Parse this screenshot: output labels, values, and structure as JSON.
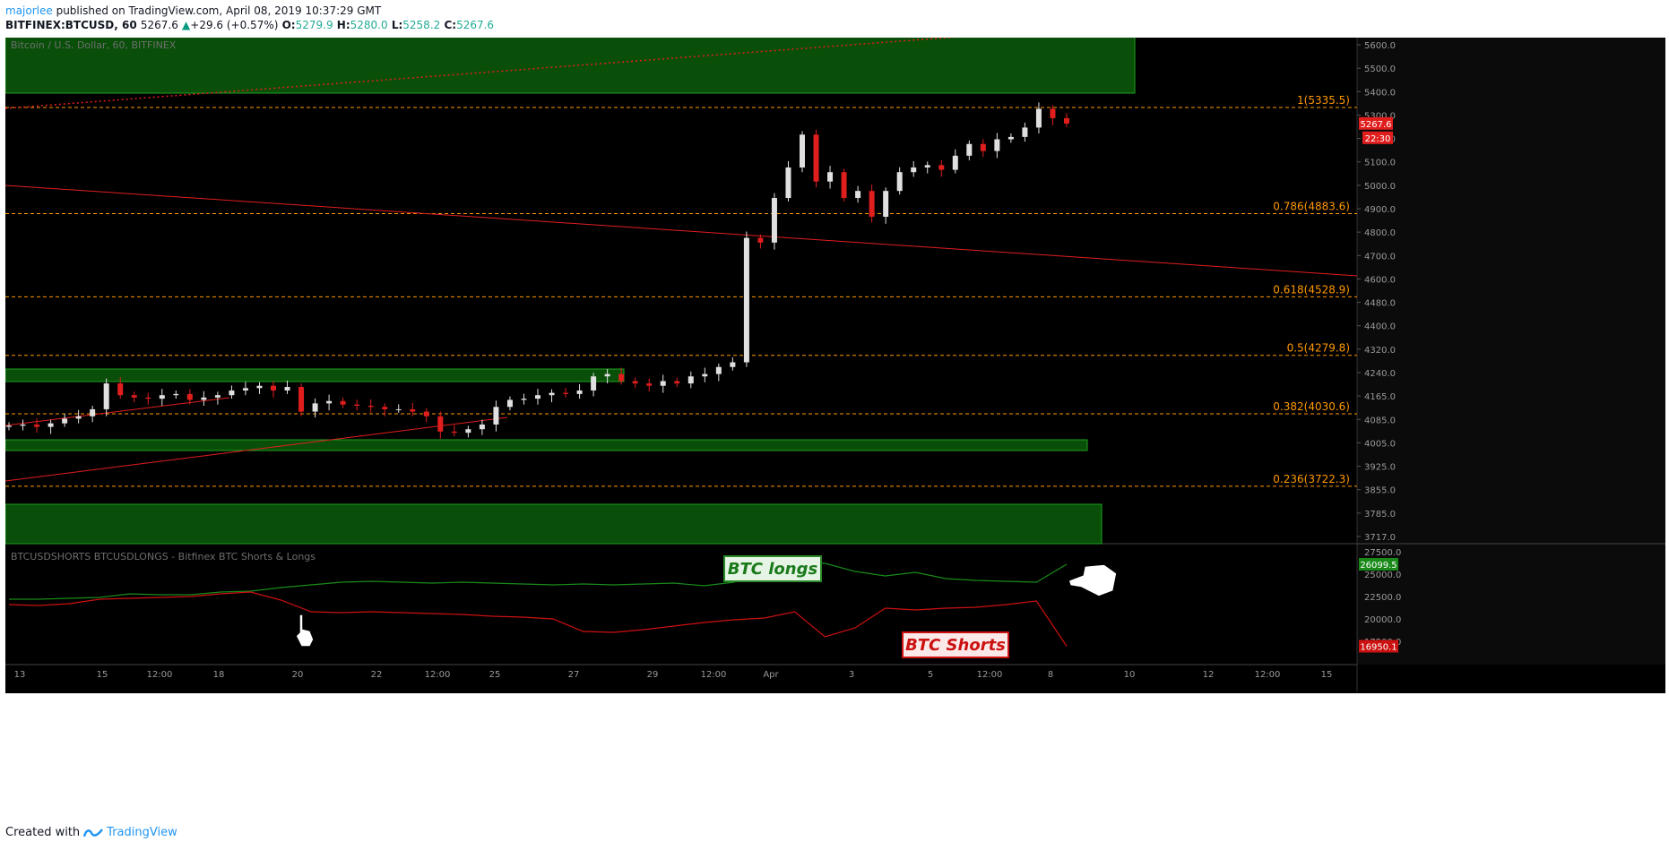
{
  "header": {
    "user": "majorlee",
    "published": " published on TradingView.com, April 08, 2019 10:37:29 GMT",
    "symbol": "BITFINEX:BTCUSD, 60",
    "price": "5267.6",
    "change": "+29.6 (+0.57%)",
    "o_label": "O:",
    "o": "5279.9",
    "h_label": "H:",
    "h": "5280.0",
    "l_label": "L:",
    "l": "5258.2",
    "c_label": "C:",
    "c": "5267.6"
  },
  "main_pane": {
    "title": "Bitcoin / U.S. Dollar, 60, BITFINEX",
    "price_badge": "5267.6",
    "time_badge": "22:30",
    "price_axis": [
      "5600.0",
      "5500.0",
      "5400.0",
      "5300.0",
      "5200.0",
      "5100.0",
      "5000.0",
      "4900.0",
      "4800.0",
      "4700.0",
      "4600.0",
      "4480.0",
      "4400.0",
      "4320.0",
      "4240.0",
      "4165.0",
      "4085.0",
      "4005.0",
      "3925.0",
      "3855.0",
      "3785.0",
      "3717.0"
    ]
  },
  "fib_levels": [
    {
      "label": "1(5335.5)",
      "price": 5335.5
    },
    {
      "label": "0.786(4883.6)",
      "price": 4883.6
    },
    {
      "label": "0.618(4528.9)",
      "price": 4528.9
    },
    {
      "label": "0.5(4279.8)",
      "price": 4279.8
    },
    {
      "label": "0.382(4030.6)",
      "price": 4030.6
    },
    {
      "label": "0.236(3722.3)",
      "price": 3722.3
    }
  ],
  "indicator_pane": {
    "title": "BTCUSDSHORTS BTCUSDLONGS - Bitfinex BTC Shorts & Longs",
    "axis": [
      "27500.0",
      "25000.0",
      "22500.0",
      "20000.0",
      "17500.0"
    ],
    "longs_badge": "26099.5",
    "shorts_badge": "16950.1",
    "longs_annotation": "BTC longs",
    "shorts_annotation": "BTC Shorts"
  },
  "time_axis": [
    "13",
    "15",
    "12:00",
    "18",
    "20",
    "22",
    "12:00",
    "25",
    "27",
    "29",
    "12:00",
    "Apr",
    "3",
    "5",
    "12:00",
    "8",
    "10",
    "12",
    "12:00",
    "15"
  ],
  "colors": {
    "fib": "#ff9800",
    "zone": "#0a5d0a",
    "trend": "#e01e1e",
    "up": "#e0e0e0",
    "down": "#e01e1e",
    "longs": "#1a8a1a",
    "shorts": "#cc1111"
  },
  "footer": {
    "prefix": "Created with",
    "brand": "TradingView"
  },
  "chart_data": {
    "type": "candlestick",
    "title": "Bitcoin / U.S. Dollar, 60, BITFINEX",
    "ylim": [
      3700,
      5650
    ],
    "series": [
      {
        "name": "BTCUSD close (approx.)",
        "values": [
          3980,
          3985,
          3975,
          3990,
          4010,
          4020,
          4050,
          4160,
          4110,
          4100,
          4095,
          4110,
          4115,
          4090,
          4100,
          4110,
          4130,
          4140,
          4150,
          4130,
          4145,
          4040,
          4075,
          4085,
          4070,
          4065,
          4060,
          4050,
          4050,
          4040,
          4020,
          3955,
          3950,
          3965,
          3985,
          4060,
          4090,
          4095,
          4110,
          4120,
          4115,
          4130,
          4190,
          4200,
          4170,
          4160,
          4150,
          4170,
          4160,
          4190,
          4200,
          4230,
          4250,
          4780,
          4760,
          4950,
          5080,
          5220,
          5020,
          5060,
          4950,
          4980,
          4870,
          4980,
          5060,
          5080,
          5090,
          5070,
          5130,
          5180,
          5150,
          5200,
          5210,
          5250,
          5330,
          5290,
          5267
        ]
      }
    ],
    "indicator": [
      {
        "name": "BTCUSDLONGS (approx.)",
        "values": [
          22200,
          22200,
          22300,
          22400,
          22800,
          22700,
          22700,
          23000,
          23100,
          23500,
          23800,
          24100,
          24200,
          24100,
          24000,
          24100,
          24000,
          23900,
          23800,
          23900,
          23800,
          23900,
          24000,
          23700,
          24100,
          25500,
          26400,
          26200,
          25300,
          24800,
          25200,
          24500,
          24300,
          24200,
          24100,
          26100
        ]
      },
      {
        "name": "BTCUSDSHORTS (approx.)",
        "values": [
          21600,
          21500,
          21700,
          22200,
          22300,
          22400,
          22500,
          22800,
          23000,
          22100,
          20800,
          20700,
          20800,
          20700,
          20600,
          20500,
          20300,
          20200,
          20000,
          18600,
          18500,
          18800,
          19200,
          19600,
          19900,
          20100,
          20800,
          18000,
          19000,
          21200,
          21000,
          21200,
          21300,
          21600,
          22000,
          16950
        ]
      }
    ]
  }
}
